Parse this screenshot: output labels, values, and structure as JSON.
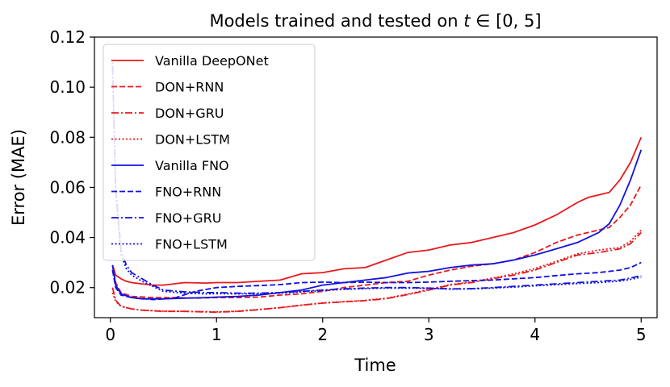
{
  "chart_data": {
    "type": "line",
    "title": "Models trained and tested on t ∈ [0, 5]",
    "title_parts": {
      "prefix": "Models trained and tested on ",
      "math": "t",
      "suffix": " ∈ [0, 5]"
    },
    "xlabel": "Time",
    "ylabel": "Error (MAE)",
    "xlim": [
      -0.15,
      5.15
    ],
    "ylim": [
      0.008,
      0.12
    ],
    "xticks": [
      0,
      1,
      2,
      3,
      4,
      5
    ],
    "xtick_labels": [
      "0",
      "1",
      "2",
      "3",
      "4",
      "5"
    ],
    "yticks": [
      0.02,
      0.04,
      0.06,
      0.08,
      0.1,
      0.12
    ],
    "ytick_labels": [
      "0.02",
      "0.04",
      "0.06",
      "0.08",
      "0.10",
      "0.12"
    ],
    "legend_position": "top-left",
    "colors": {
      "red": "#e8191c",
      "blue": "#1212e0"
    },
    "series": [
      {
        "name": "Vanilla DeepONet",
        "color": "#e8191c",
        "style": "solid",
        "x": [
          0.02,
          0.05,
          0.1,
          0.15,
          0.2,
          0.3,
          0.4,
          0.5,
          0.7,
          0.9,
          1.0,
          1.2,
          1.4,
          1.6,
          1.8,
          2.0,
          2.2,
          2.4,
          2.6,
          2.8,
          3.0,
          3.2,
          3.4,
          3.6,
          3.8,
          4.0,
          4.2,
          4.4,
          4.5,
          4.6,
          4.7,
          4.8,
          4.9,
          5.0
        ],
        "y": [
          0.029,
          0.025,
          0.0235,
          0.0225,
          0.022,
          0.0215,
          0.021,
          0.021,
          0.022,
          0.0218,
          0.022,
          0.022,
          0.0225,
          0.023,
          0.0255,
          0.026,
          0.0275,
          0.028,
          0.031,
          0.034,
          0.035,
          0.037,
          0.038,
          0.04,
          0.042,
          0.045,
          0.049,
          0.054,
          0.056,
          0.057,
          0.058,
          0.063,
          0.07,
          0.08
        ]
      },
      {
        "name": "DON+RNN",
        "color": "#e8191c",
        "style": "dashed",
        "x": [
          0.02,
          0.05,
          0.1,
          0.2,
          0.4,
          0.6,
          0.8,
          1.0,
          1.2,
          1.4,
          1.6,
          1.8,
          2.0,
          2.2,
          2.4,
          2.6,
          2.8,
          3.0,
          3.2,
          3.4,
          3.6,
          3.8,
          4.0,
          4.2,
          4.4,
          4.6,
          4.7,
          4.8,
          4.9,
          5.0
        ],
        "y": [
          0.029,
          0.022,
          0.018,
          0.0165,
          0.016,
          0.016,
          0.0158,
          0.016,
          0.016,
          0.0162,
          0.017,
          0.0175,
          0.0185,
          0.02,
          0.021,
          0.022,
          0.0225,
          0.025,
          0.027,
          0.0285,
          0.0295,
          0.031,
          0.034,
          0.038,
          0.041,
          0.043,
          0.044,
          0.048,
          0.053,
          0.061
        ]
      },
      {
        "name": "DON+GRU",
        "color": "#e8191c",
        "style": "dashdot",
        "x": [
          0.02,
          0.05,
          0.1,
          0.2,
          0.3,
          0.5,
          0.7,
          0.9,
          1.0,
          1.2,
          1.4,
          1.6,
          1.8,
          2.0,
          2.2,
          2.4,
          2.6,
          2.8,
          3.0,
          3.2,
          3.4,
          3.6,
          3.8,
          4.0,
          4.2,
          4.4,
          4.6,
          4.8,
          4.9,
          5.0
        ],
        "y": [
          0.02,
          0.015,
          0.0125,
          0.0115,
          0.011,
          0.0105,
          0.0105,
          0.0103,
          0.0102,
          0.0105,
          0.0112,
          0.012,
          0.013,
          0.0138,
          0.0143,
          0.0148,
          0.0156,
          0.0172,
          0.019,
          0.021,
          0.022,
          0.0235,
          0.025,
          0.027,
          0.03,
          0.033,
          0.034,
          0.0355,
          0.0375,
          0.042
        ]
      },
      {
        "name": "DON+LSTM",
        "color": "#e8191c",
        "style": "dotted",
        "x": [
          0.02,
          0.05,
          0.1,
          0.2,
          0.3,
          0.5,
          0.7,
          0.9,
          1.0,
          1.2,
          1.4,
          1.6,
          1.8,
          2.0,
          2.2,
          2.4,
          2.6,
          2.8,
          3.0,
          3.2,
          3.4,
          3.6,
          3.8,
          4.0,
          4.2,
          4.4,
          4.6,
          4.8,
          4.9,
          5.0
        ],
        "y": [
          0.018,
          0.0145,
          0.0125,
          0.0115,
          0.011,
          0.0106,
          0.0105,
          0.0104,
          0.0103,
          0.0106,
          0.0113,
          0.012,
          0.013,
          0.0139,
          0.0144,
          0.0149,
          0.0158,
          0.0174,
          0.0193,
          0.0212,
          0.0223,
          0.0238,
          0.0255,
          0.0276,
          0.0305,
          0.0335,
          0.035,
          0.036,
          0.0385,
          0.043
        ]
      },
      {
        "name": "Vanilla FNO",
        "color": "#1212e0",
        "style": "solid",
        "x": [
          0.02,
          0.05,
          0.1,
          0.2,
          0.3,
          0.5,
          0.7,
          0.9,
          1.0,
          1.2,
          1.4,
          1.6,
          1.8,
          2.0,
          2.2,
          2.4,
          2.6,
          2.8,
          3.0,
          3.2,
          3.4,
          3.6,
          3.8,
          4.0,
          4.2,
          4.4,
          4.6,
          4.7,
          4.8,
          4.9,
          5.0
        ],
        "y": [
          0.029,
          0.021,
          0.0175,
          0.016,
          0.0155,
          0.0155,
          0.0158,
          0.016,
          0.0162,
          0.0165,
          0.017,
          0.018,
          0.019,
          0.021,
          0.022,
          0.023,
          0.024,
          0.0258,
          0.0265,
          0.028,
          0.029,
          0.0295,
          0.031,
          0.033,
          0.0355,
          0.038,
          0.042,
          0.0455,
          0.053,
          0.063,
          0.075
        ]
      },
      {
        "name": "FNO+RNN",
        "color": "#1212e0",
        "style": "dashed",
        "x": [
          0.02,
          0.05,
          0.1,
          0.2,
          0.4,
          0.6,
          0.8,
          1.0,
          1.2,
          1.4,
          1.6,
          1.8,
          2.0,
          2.2,
          2.4,
          2.6,
          2.8,
          3.0,
          3.2,
          3.4,
          3.6,
          3.8,
          4.0,
          4.2,
          4.4,
          4.6,
          4.8,
          4.9,
          5.0
        ],
        "y": [
          0.027,
          0.02,
          0.017,
          0.016,
          0.0152,
          0.0158,
          0.0185,
          0.02,
          0.0205,
          0.0208,
          0.0212,
          0.022,
          0.0222,
          0.022,
          0.0222,
          0.022,
          0.022,
          0.0222,
          0.0225,
          0.0228,
          0.023,
          0.0235,
          0.024,
          0.0248,
          0.0255,
          0.026,
          0.027,
          0.028,
          0.03
        ]
      },
      {
        "name": "FNO+GRU",
        "color": "#1212e0",
        "style": "dashdot",
        "x": [
          0.02,
          0.05,
          0.1,
          0.15,
          0.2,
          0.3,
          0.4,
          0.5,
          0.7,
          0.9,
          1.0,
          1.2,
          1.4,
          1.6,
          1.8,
          2.0,
          2.2,
          2.4,
          2.6,
          2.8,
          3.0,
          3.2,
          3.4,
          3.6,
          3.8,
          4.0,
          4.2,
          4.4,
          4.6,
          4.8,
          4.9,
          5.0
        ],
        "y": [
          0.108,
          0.06,
          0.035,
          0.029,
          0.026,
          0.0235,
          0.021,
          0.019,
          0.0183,
          0.018,
          0.018,
          0.0178,
          0.0178,
          0.018,
          0.0185,
          0.019,
          0.0195,
          0.0198,
          0.02,
          0.02,
          0.0198,
          0.0195,
          0.0196,
          0.02,
          0.0205,
          0.021,
          0.0215,
          0.022,
          0.0225,
          0.023,
          0.0238,
          0.0248
        ]
      },
      {
        "name": "FNO+LSTM",
        "color": "#1212e0",
        "style": "dotted",
        "x": [
          0.02,
          0.05,
          0.1,
          0.15,
          0.2,
          0.3,
          0.4,
          0.5,
          0.7,
          0.9,
          1.0,
          1.2,
          1.4,
          1.6,
          1.8,
          2.0,
          2.2,
          2.4,
          2.6,
          2.8,
          3.0,
          3.2,
          3.4,
          3.6,
          3.8,
          4.0,
          4.2,
          4.4,
          4.6,
          4.8,
          4.9,
          5.0
        ],
        "y": [
          0.11,
          0.058,
          0.033,
          0.0275,
          0.025,
          0.0225,
          0.0205,
          0.0185,
          0.0178,
          0.0175,
          0.0176,
          0.0175,
          0.0175,
          0.0178,
          0.0183,
          0.0188,
          0.0193,
          0.0196,
          0.0198,
          0.0198,
          0.0197,
          0.0194,
          0.0195,
          0.0198,
          0.0202,
          0.0207,
          0.0212,
          0.0216,
          0.022,
          0.0226,
          0.0233,
          0.0242
        ]
      }
    ]
  }
}
